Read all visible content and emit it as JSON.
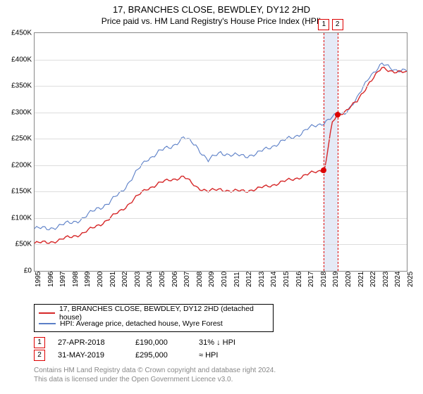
{
  "title": "17, BRANCHES CLOSE, BEWDLEY, DY12 2HD",
  "subtitle": "Price paid vs. HM Land Registry's House Price Index (HPI)",
  "chart": {
    "type": "line",
    "background_color": "#ffffff",
    "grid_color": "#dddddd",
    "axis_color": "#888888",
    "ylim": [
      0,
      450000
    ],
    "ytick_step": 50000,
    "yticks": [
      "£0",
      "£50K",
      "£100K",
      "£150K",
      "£200K",
      "£250K",
      "£300K",
      "£350K",
      "£400K",
      "£450K"
    ],
    "xlim_years": [
      1995,
      2025
    ],
    "xticks": [
      1995,
      1996,
      1997,
      1998,
      1999,
      2000,
      2001,
      2002,
      2003,
      2004,
      2005,
      2006,
      2007,
      2008,
      2009,
      2010,
      2011,
      2012,
      2013,
      2014,
      2015,
      2016,
      2017,
      2018,
      2019,
      2020,
      2021,
      2022,
      2023,
      2024,
      2025
    ],
    "series": {
      "property": {
        "color": "#d62728",
        "line_width": 1.4,
        "label": "17, BRANCHES CLOSE, BEWDLEY, DY12 2HD (detached house)",
        "points": [
          [
            1995,
            52000
          ],
          [
            1996,
            54000
          ],
          [
            1997,
            58000
          ],
          [
            1998,
            65000
          ],
          [
            1999,
            72000
          ],
          [
            2000,
            85000
          ],
          [
            2001,
            98000
          ],
          [
            2002,
            115000
          ],
          [
            2003,
            135000
          ],
          [
            2004,
            155000
          ],
          [
            2005,
            165000
          ],
          [
            2006,
            173000
          ],
          [
            2007,
            178000
          ],
          [
            2008,
            160000
          ],
          [
            2009,
            150000
          ],
          [
            2010,
            155000
          ],
          [
            2011,
            150000
          ],
          [
            2012,
            152000
          ],
          [
            2013,
            155000
          ],
          [
            2014,
            162000
          ],
          [
            2015,
            168000
          ],
          [
            2016,
            175000
          ],
          [
            2017,
            182000
          ],
          [
            2018,
            190000
          ],
          [
            2018.35,
            190000
          ],
          [
            2018.36,
            190000
          ],
          [
            2019,
            280000
          ],
          [
            2019.4,
            295000
          ],
          [
            2020,
            302000
          ],
          [
            2021,
            320000
          ],
          [
            2022,
            358000
          ],
          [
            2023,
            383000
          ],
          [
            2024,
            378000
          ],
          [
            2025,
            374000
          ]
        ]
      },
      "hpi": {
        "color": "#5b7fc7",
        "line_width": 1.1,
        "label": "HPI: Average price, detached house, Wyre Forest",
        "points": [
          [
            1995,
            80000
          ],
          [
            1996,
            80000
          ],
          [
            1997,
            85000
          ],
          [
            1998,
            92000
          ],
          [
            1999,
            100000
          ],
          [
            2000,
            118000
          ],
          [
            2001,
            128000
          ],
          [
            2002,
            150000
          ],
          [
            2003,
            180000
          ],
          [
            2004,
            210000
          ],
          [
            2005,
            225000
          ],
          [
            2006,
            235000
          ],
          [
            2007,
            252000
          ],
          [
            2008,
            238000
          ],
          [
            2009,
            208000
          ],
          [
            2010,
            225000
          ],
          [
            2011,
            218000
          ],
          [
            2012,
            218000
          ],
          [
            2013,
            222000
          ],
          [
            2014,
            235000
          ],
          [
            2015,
            245000
          ],
          [
            2016,
            255000
          ],
          [
            2017,
            268000
          ],
          [
            2018,
            278000
          ],
          [
            2019,
            290000
          ],
          [
            2020,
            300000
          ],
          [
            2021,
            325000
          ],
          [
            2022,
            370000
          ],
          [
            2023,
            390000
          ],
          [
            2024,
            382000
          ],
          [
            2025,
            378000
          ]
        ]
      }
    },
    "sale_markers": [
      {
        "n": "1",
        "year": 2018.32,
        "value": 190000
      },
      {
        "n": "2",
        "year": 2019.41,
        "value": 295000
      }
    ],
    "marker_band": {
      "from": 2018.32,
      "to": 2019.41,
      "fill": "rgba(150,170,220,0.25)"
    },
    "marker_badge_border": "#d62728",
    "marker_line_color": "#d62728",
    "sale_dot_color": "#d62728"
  },
  "legend": {
    "border_color": "#000000",
    "items": [
      {
        "color": "#d62728",
        "label": "17, BRANCHES CLOSE, BEWDLEY, DY12 2HD (detached house)"
      },
      {
        "color": "#5b7fc7",
        "label": "HPI: Average price, detached house, Wyre Forest"
      }
    ]
  },
  "sales_table": [
    {
      "n": "1",
      "date": "27-APR-2018",
      "price": "£190,000",
      "delta": "31% ↓ HPI"
    },
    {
      "n": "2",
      "date": "31-MAY-2019",
      "price": "£295,000",
      "delta": "≈ HPI"
    }
  ],
  "footnote_line1": "Contains HM Land Registry data © Crown copyright and database right 2024.",
  "footnote_line2": "This data is licensed under the Open Government Licence v3.0.",
  "typography": {
    "title_fontsize": 13,
    "subtitle_fontsize": 12,
    "tick_fontsize": 10,
    "legend_fontsize": 10.5
  }
}
